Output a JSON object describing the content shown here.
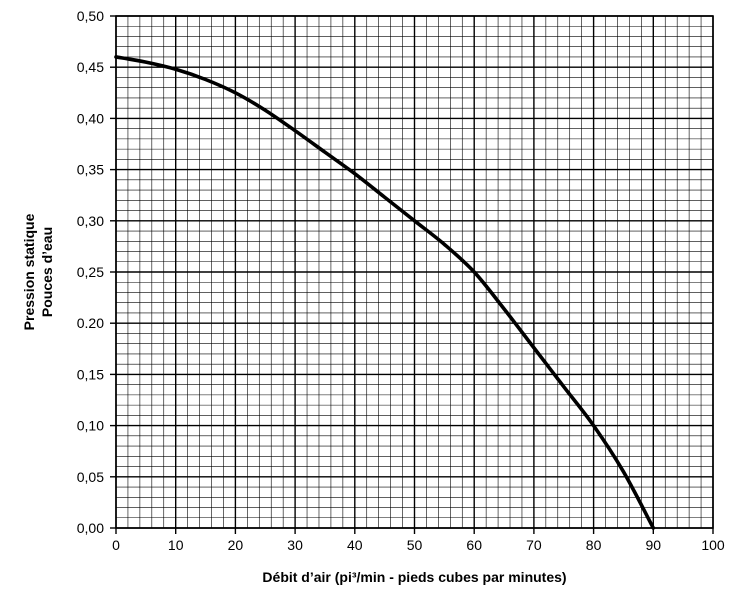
{
  "chart_data": {
    "type": "line",
    "title": "",
    "xlabel": "Débit d’air (pi³/min - pieds cubes par minutes)",
    "ylabel_line1": "Pression statique",
    "ylabel_line2": "Pouces d’eau",
    "xlim": [
      0,
      100
    ],
    "ylim": [
      0,
      0.5
    ],
    "x_ticks": [
      0,
      10,
      20,
      30,
      40,
      50,
      60,
      70,
      80,
      90,
      100
    ],
    "x_tick_labels": [
      "0",
      "10",
      "20",
      "30",
      "40",
      "50",
      "60",
      "70",
      "80",
      "90",
      "100"
    ],
    "y_ticks": [
      0,
      0.05,
      0.1,
      0.15,
      0.2,
      0.25,
      0.3,
      0.35,
      0.4,
      0.45,
      0.5
    ],
    "y_tick_labels": [
      "0,00",
      "0,05",
      "0,10",
      "0,15",
      "0.20",
      "0,25",
      "0,30",
      "0,35",
      "0,40",
      "0,45",
      "0,50"
    ],
    "grid": true,
    "minor_divisions": 5,
    "series": [
      {
        "x": [
          0,
          5,
          10,
          15,
          20,
          25,
          30,
          35,
          40,
          45,
          50,
          55,
          60,
          65,
          70,
          75,
          80,
          85,
          90
        ],
        "y": [
          0.46,
          0.455,
          0.448,
          0.438,
          0.425,
          0.408,
          0.388,
          0.367,
          0.346,
          0.323,
          0.3,
          0.277,
          0.25,
          0.214,
          0.176,
          0.138,
          0.1,
          0.055,
          0.0
        ],
        "color": "#000000"
      }
    ]
  }
}
